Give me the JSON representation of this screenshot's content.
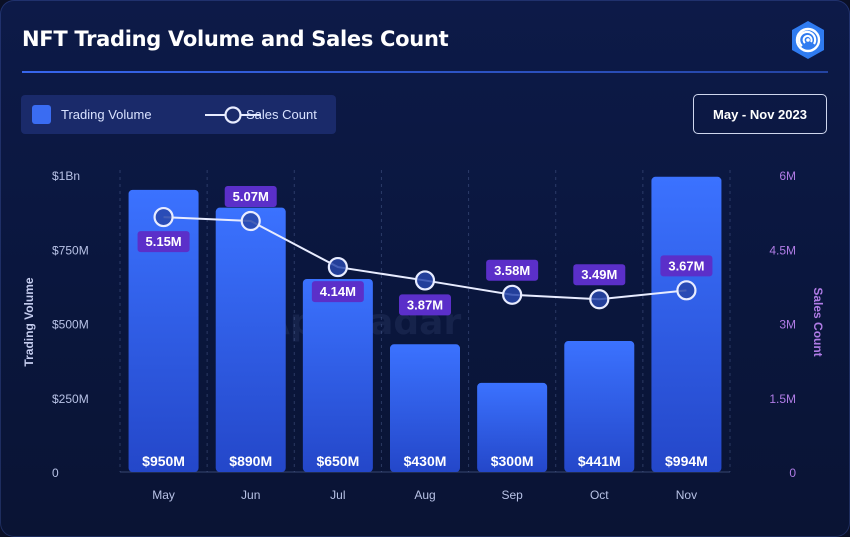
{
  "header": {
    "title": "NFT Trading Volume and Sales Count",
    "brand_icon": "appradar-logo-icon",
    "date_range": "May - Nov 2023"
  },
  "legend": {
    "bar_label": "Trading Volume",
    "line_label": "Sales Count"
  },
  "watermark": "AppRadar",
  "colors": {
    "bar_top": "#3b72ff",
    "bar_bottom": "#2447c9",
    "line": "#e8ecff",
    "line_label_bg": "#5b2fc9",
    "right_axis": "#b07ce6",
    "accent": "#3a6cf2"
  },
  "chart_data": {
    "type": "bar",
    "categories": [
      "May",
      "Jun",
      "Jul",
      "Aug",
      "Sep",
      "Oct",
      "Nov"
    ],
    "series": [
      {
        "name": "Trading Volume",
        "type": "bar",
        "axis": "left",
        "values": [
          950,
          890,
          650,
          430,
          300,
          441,
          994
        ],
        "labels": [
          "$950M",
          "$890M",
          "$650M",
          "$430M",
          "$300M",
          "$441M",
          "$994M"
        ]
      },
      {
        "name": "Sales Count",
        "type": "line",
        "axis": "right",
        "values": [
          5.15,
          5.07,
          4.14,
          3.87,
          3.58,
          3.49,
          3.67
        ],
        "labels": [
          "5.15M",
          "5.07M",
          "4.14M",
          "3.87M",
          "3.58M",
          "3.49M",
          "3.67M"
        ]
      }
    ],
    "ylabel": "Trading Volume",
    "ylim": [
      0,
      1000
    ],
    "yticks": [
      0,
      250,
      500,
      750,
      1000
    ],
    "ytick_labels": [
      "0",
      "$250M",
      "$500M",
      "$750M",
      "$1Bn"
    ],
    "y2label": "Sales Count",
    "y2lim": [
      0,
      6
    ],
    "y2ticks": [
      0,
      1.5,
      3,
      4.5,
      6
    ],
    "y2tick_labels": [
      "0",
      "1.5M",
      "3M",
      "4.5M",
      "6M"
    ],
    "grid": "vertical dashed",
    "legend_position": "top-left"
  }
}
